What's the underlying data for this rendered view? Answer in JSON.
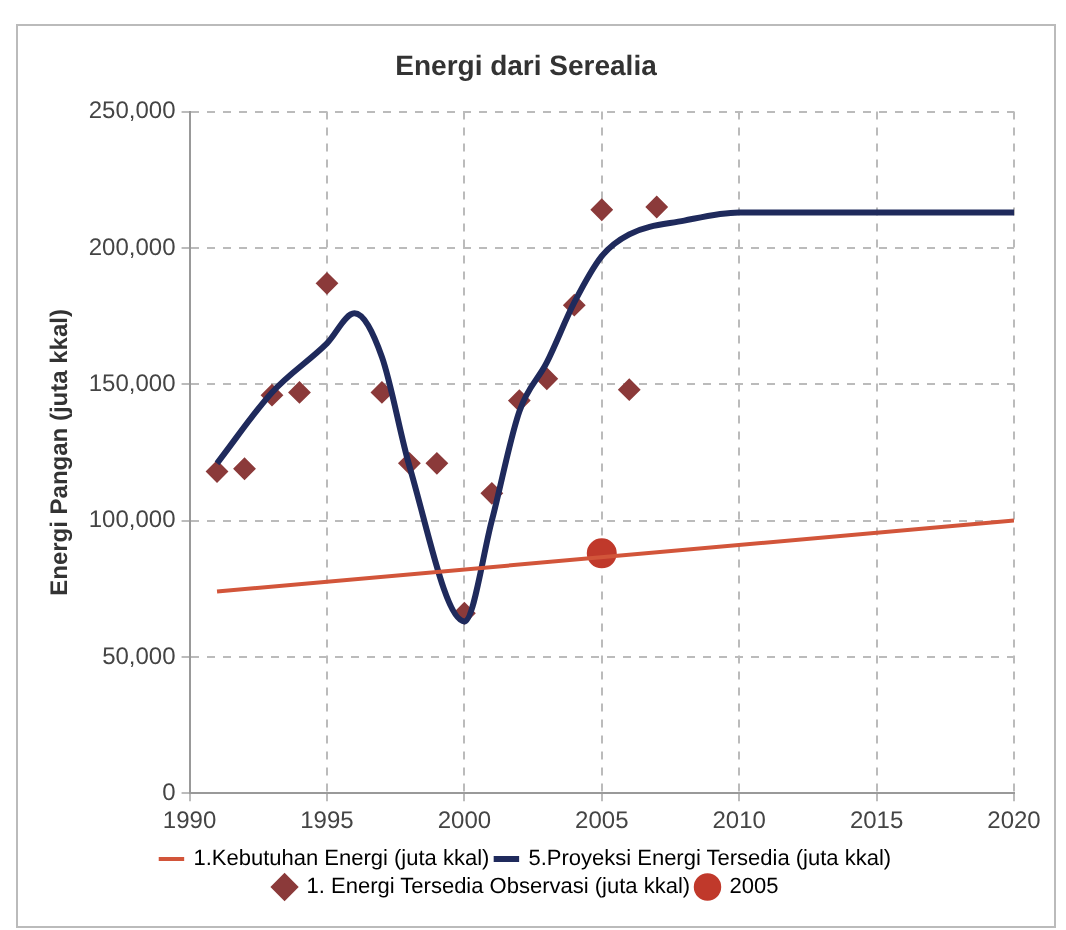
{
  "chart_data": {
    "type": "line",
    "title": "Energi dari Serealia",
    "ylabel": "Energi Pangan (juta kkal)",
    "xlim": [
      1990,
      2020
    ],
    "xticks": [
      1990,
      1995,
      2000,
      2005,
      2010,
      2015,
      2020
    ],
    "ylim": [
      0,
      250000
    ],
    "yticks": [
      {
        "value": 0,
        "label": "0"
      },
      {
        "value": 50000,
        "label": "50,000"
      },
      {
        "value": 100000,
        "label": "100,000"
      },
      {
        "value": 150000,
        "label": "150,000"
      },
      {
        "value": 200000,
        "label": "200,000"
      },
      {
        "value": 250000,
        "label": "250,000"
      }
    ],
    "grid": true,
    "legend": "bottom",
    "series": [
      {
        "name": "1.Kebutuhan Energi (juta kkal)",
        "color": "#d2553a",
        "marker": "none",
        "x": [
          1991,
          2020
        ],
        "values": [
          74000,
          100000
        ]
      },
      {
        "name": "5.Proyeksi Energi Tersedia (juta kkal)",
        "color": "#1f2a5c",
        "marker": "none",
        "x": [
          1991,
          1993,
          1995,
          1996,
          1997,
          1998,
          2000,
          2001,
          2002,
          2003,
          2004,
          2005,
          2006,
          2008,
          2010,
          2015,
          2020
        ],
        "values": [
          121000,
          147000,
          165000,
          176000,
          160000,
          120000,
          63000,
          100000,
          140000,
          158000,
          180000,
          197000,
          205000,
          210000,
          213000,
          213000,
          213000
        ]
      },
      {
        "name": "1. Energi Tersedia Observasi (juta kkal)",
        "type": "scatter",
        "color": "#8b3a3a",
        "marker": "diamond",
        "x": [
          1991,
          1992,
          1993,
          1994,
          1995,
          1997,
          1998,
          1999,
          2000,
          2001,
          2002,
          2003,
          2004,
          2005,
          2006,
          2007
        ],
        "values": [
          118000,
          119000,
          146000,
          147000,
          187000,
          147000,
          121000,
          121000,
          66000,
          110000,
          144000,
          152000,
          179000,
          214000,
          148000,
          215000
        ]
      },
      {
        "name": "2005",
        "type": "scatter",
        "color": "#c0392b",
        "marker": "circle",
        "x": [
          2005
        ],
        "values": [
          88000
        ]
      }
    ]
  }
}
